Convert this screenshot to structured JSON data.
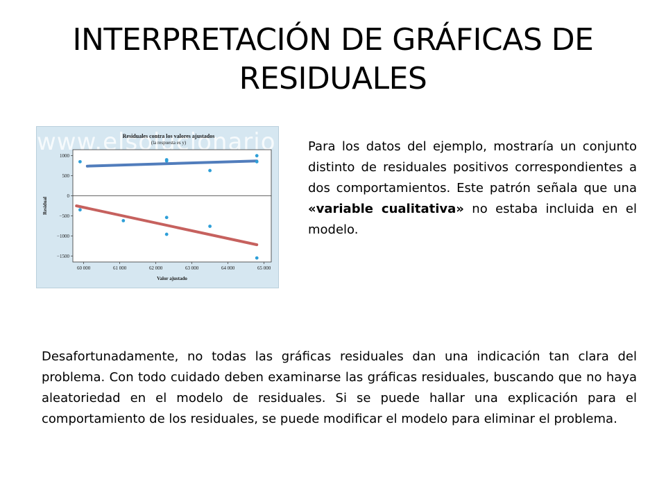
{
  "slide": {
    "title": "INTERPRETACIÓN DE GRÁFICAS DE RESIDUALES",
    "watermark": "www.elsolucionario"
  },
  "side_paragraph": {
    "before_bold": "Para los datos del ejemplo, mostraría un conjunto distinto de residuales positivos correspondientes a dos comportamientos. Este patrón señala que una ",
    "bold": "«variable cualitativa»",
    "after_bold": " no estaba incluida en el modelo."
  },
  "bottom_paragraph": "Desafortunadamente, no todas las gráficas residuales dan una indicación tan clara del problema. Con todo cuidado deben examinarse las gráficas residuales, buscando que no haya aleatoriedad en el modelo de residuales. Si se puede hallar una explicación para el comportamiento de los residuales, se puede modificar el modelo para eliminar el problema.",
  "chart_data": {
    "type": "scatter",
    "title": "Residuales contra los valores ajustados",
    "subtitle": "(la respuesta es y)",
    "xlabel": "Valor ajustado",
    "ylabel": "Residual",
    "xlim": [
      59700,
      65200
    ],
    "ylim": [
      -1650,
      1150
    ],
    "x_ticks": [
      60000,
      61000,
      62000,
      63000,
      64000,
      65000
    ],
    "x_tick_labels": [
      "60 000",
      "61 000",
      "62 000",
      "63 000",
      "64 000",
      "65 000"
    ],
    "y_ticks": [
      1000,
      500,
      0,
      -500,
      -1000,
      -1500
    ],
    "y_tick_labels": [
      "1000",
      "500",
      "0",
      "−500",
      "−1000",
      "−1500"
    ],
    "zero_line": true,
    "grid": false,
    "point_color": "#2e9fd8",
    "points": [
      {
        "x": 59900,
        "y": 850
      },
      {
        "x": 62300,
        "y": 900
      },
      {
        "x": 62300,
        "y": 870
      },
      {
        "x": 63500,
        "y": 630
      },
      {
        "x": 64800,
        "y": 1000
      },
      {
        "x": 64800,
        "y": 850
      },
      {
        "x": 59900,
        "y": -350
      },
      {
        "x": 61100,
        "y": -620
      },
      {
        "x": 62300,
        "y": -540
      },
      {
        "x": 62300,
        "y": -960
      },
      {
        "x": 63500,
        "y": -760
      },
      {
        "x": 64800,
        "y": -1550
      }
    ],
    "trend_lines": [
      {
        "color": "#3f6fb5",
        "x": [
          60100,
          64800
        ],
        "y": [
          740,
          870
        ]
      },
      {
        "color": "#c0504d",
        "x": [
          59800,
          64800
        ],
        "y": [
          -250,
          -1220
        ]
      }
    ]
  }
}
